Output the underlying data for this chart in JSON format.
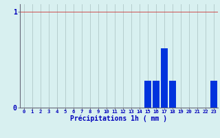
{
  "hours": [
    0,
    1,
    2,
    3,
    4,
    5,
    6,
    7,
    8,
    9,
    10,
    11,
    12,
    13,
    14,
    15,
    16,
    17,
    18,
    19,
    20,
    21,
    22,
    23
  ],
  "values": [
    0,
    0,
    0,
    0,
    0,
    0,
    0,
    0,
    0,
    0,
    0,
    0,
    0,
    0,
    0,
    0.28,
    0.28,
    0.62,
    0.28,
    0,
    0,
    0,
    0,
    0.28
  ],
  "bar_color": "#0033dd",
  "bg_color": "#d8f0f0",
  "grid_color_x": "#b0c8c8",
  "grid_color_y": "#cc3333",
  "xlabel": "Précipitations 1h ( mm )",
  "xlabel_color": "#0000bb",
  "tick_color": "#0000bb",
  "axis_color": "#666677",
  "ylim": [
    0,
    1.08
  ],
  "yticks": [
    0,
    1
  ],
  "xlim_min": -0.5,
  "xlim_max": 23.5,
  "bar_width": 0.85
}
